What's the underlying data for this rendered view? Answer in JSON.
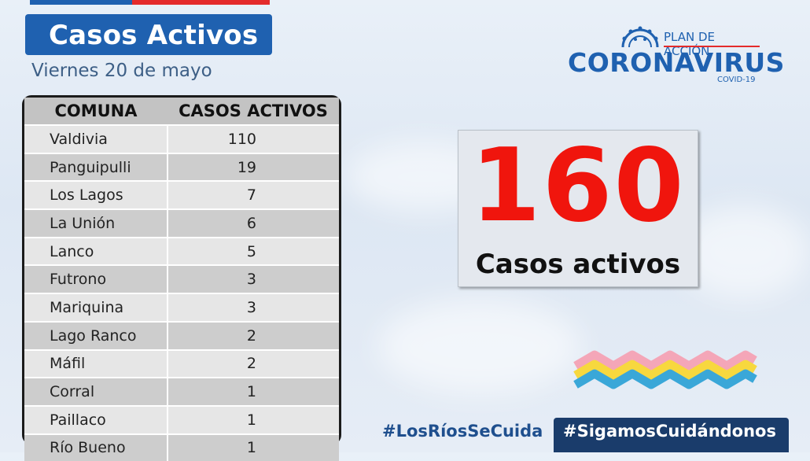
{
  "title": "Casos Activos",
  "date": "Viernes 20 de mayo",
  "table": {
    "headers": [
      "COMUNA",
      "CASOS ACTIVOS"
    ],
    "rows": [
      {
        "comuna": "Valdivia",
        "casos": "110"
      },
      {
        "comuna": "Panguipulli",
        "casos": "19"
      },
      {
        "comuna": "Los Lagos",
        "casos": "7"
      },
      {
        "comuna": "La Unión",
        "casos": "6"
      },
      {
        "comuna": "Lanco",
        "casos": "5"
      },
      {
        "comuna": "Futrono",
        "casos": "3"
      },
      {
        "comuna": "Mariquina",
        "casos": "3"
      },
      {
        "comuna": "Lago Ranco",
        "casos": "2"
      },
      {
        "comuna": "Máfil",
        "casos": "2"
      },
      {
        "comuna": "Corral",
        "casos": "1"
      },
      {
        "comuna": "Paillaco",
        "casos": "1"
      },
      {
        "comuna": "Río Bueno",
        "casos": "1"
      }
    ]
  },
  "total": {
    "number": "160",
    "label": "Casos activos"
  },
  "logo": {
    "plan": "PLAN DE ACCIÓN",
    "name": "CORONAVIRUS",
    "sub": "COVID-19",
    "icon": "virus-icon"
  },
  "hashtags": [
    "#LosRíosSeCuida",
    "#SigamosCuidándonos"
  ],
  "colors": {
    "brand_blue": "#1f61b0",
    "accent_red": "#e42b2b",
    "number_red": "#f0150d",
    "dark_navy": "#1a3c6b"
  }
}
